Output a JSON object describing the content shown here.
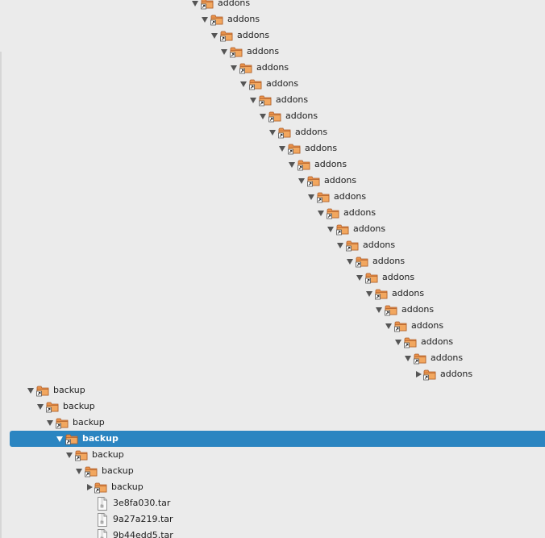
{
  "tree": {
    "addons_label": "addons",
    "backup_label": "backup",
    "addons_count": 24,
    "selected_backup_depth": 3,
    "files": [
      "3e8fa030.tar",
      "9a27a219.tar",
      "9b44edd5.tar"
    ]
  }
}
